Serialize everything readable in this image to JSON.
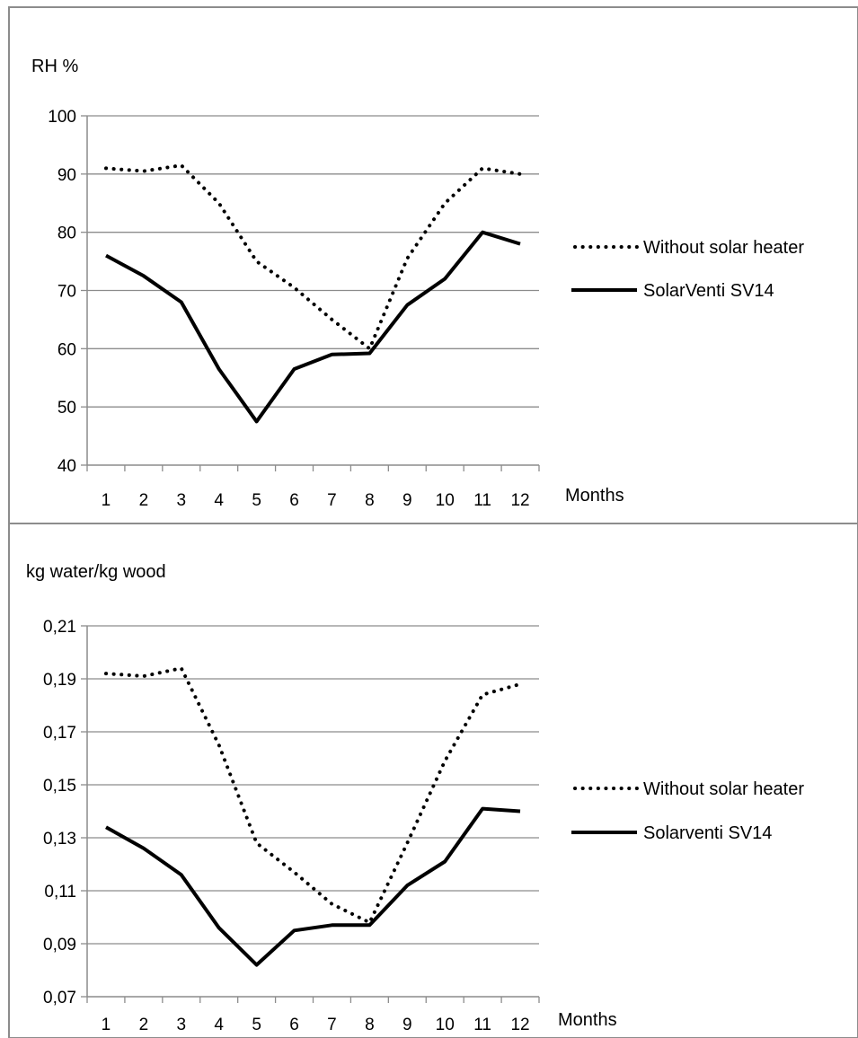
{
  "colors": {
    "series": "#000000",
    "grid": "#8c8c8c",
    "frame": "#8c8c8c"
  },
  "chart_data": [
    {
      "type": "line",
      "ylabel": "RH %",
      "xlabel": "Months",
      "x": [
        "1",
        "2",
        "3",
        "4",
        "5",
        "6",
        "7",
        "8",
        "9",
        "10",
        "11",
        "12"
      ],
      "ylim": [
        40,
        100
      ],
      "yticks": [
        "40",
        "50",
        "60",
        "70",
        "80",
        "90",
        "100"
      ],
      "grid": true,
      "legend_position": "right",
      "series": [
        {
          "name": "Without solar heater",
          "style": "dotted",
          "values": [
            91,
            90.5,
            91.5,
            85,
            75,
            70.5,
            65,
            60,
            75.5,
            85,
            91,
            90
          ]
        },
        {
          "name": "SolarVenti SV14",
          "style": "solid",
          "values": [
            76,
            72.5,
            68,
            56.5,
            47.5,
            56.5,
            59,
            59.2,
            67.5,
            72,
            80,
            78
          ]
        }
      ]
    },
    {
      "type": "line",
      "ylabel": "kg water/kg wood",
      "xlabel": "Months",
      "x": [
        "1",
        "2",
        "3",
        "4",
        "5",
        "6",
        "7",
        "8",
        "9",
        "10",
        "11",
        "12"
      ],
      "ylim": [
        0.07,
        0.21
      ],
      "yticks": [
        "0,07",
        "0,09",
        "0,11",
        "0,13",
        "0,15",
        "0,17",
        "0,19",
        "0,21"
      ],
      "grid": true,
      "legend_position": "right",
      "series": [
        {
          "name": "Without solar heater",
          "style": "dotted",
          "values": [
            0.192,
            0.191,
            0.194,
            0.165,
            0.128,
            0.117,
            0.105,
            0.098,
            0.128,
            0.159,
            0.184,
            0.188
          ]
        },
        {
          "name": "Solarventi SV14",
          "style": "solid",
          "values": [
            0.134,
            0.126,
            0.116,
            0.096,
            0.082,
            0.095,
            0.097,
            0.097,
            0.112,
            0.121,
            0.141,
            0.14
          ]
        }
      ]
    }
  ]
}
